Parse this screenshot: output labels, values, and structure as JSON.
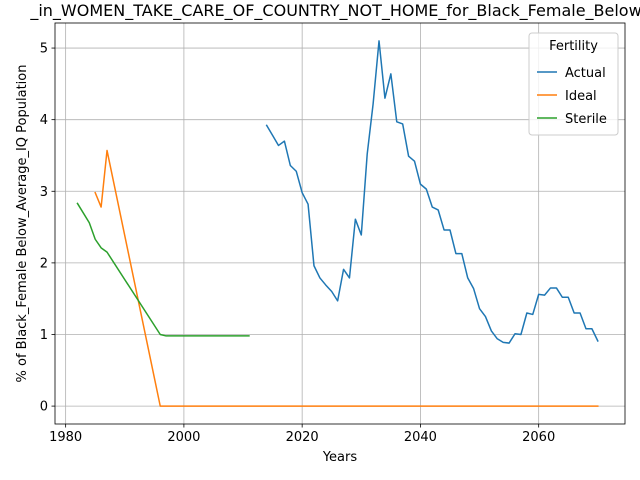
{
  "chart_data": {
    "type": "line",
    "title": "_in_WOMEN_TAKE_CARE_OF_COUNTRY_NOT_HOME_for_Black_Female_Below_",
    "xlabel": "Years",
    "ylabel": "% of Black_Female Below_Average_IQ Population",
    "xlim": [
      1978.2,
      2074.6
    ],
    "ylim": [
      -0.25,
      5.35
    ],
    "xticks": [
      1980,
      2000,
      2020,
      2040,
      2060
    ],
    "yticks": [
      0,
      1,
      2,
      3,
      4,
      5
    ],
    "grid": true,
    "legend": {
      "title": "Fertility",
      "placement": "top-right"
    },
    "series": [
      {
        "name": "Actual",
        "color": "#1f77b4",
        "x": [
          2014,
          2015,
          2016,
          2017,
          2018,
          2019,
          2020,
          2021,
          2022,
          2023,
          2024,
          2025,
          2026,
          2027,
          2028,
          2029,
          2030,
          2031,
          2032,
          2033,
          2034,
          2035,
          2036,
          2037,
          2038,
          2039,
          2040,
          2041,
          2042,
          2043,
          2044,
          2045,
          2046,
          2047,
          2048,
          2049,
          2050,
          2051,
          2052,
          2053,
          2054,
          2055,
          2056,
          2057,
          2058,
          2059,
          2060,
          2061,
          2062,
          2063,
          2064,
          2065,
          2066,
          2067,
          2068,
          2069,
          2070
        ],
        "y": [
          3.92,
          3.78,
          3.64,
          3.7,
          3.36,
          3.28,
          2.98,
          2.82,
          1.96,
          1.79,
          1.69,
          1.6,
          1.47,
          1.91,
          1.79,
          2.61,
          2.39,
          3.52,
          4.22,
          5.1,
          4.3,
          4.64,
          3.97,
          3.94,
          3.49,
          3.42,
          3.1,
          3.03,
          2.78,
          2.74,
          2.46,
          2.46,
          2.13,
          2.13,
          1.79,
          1.64,
          1.36,
          1.25,
          1.05,
          0.94,
          0.89,
          0.88,
          1.01,
          1.0,
          1.3,
          1.28,
          1.56,
          1.55,
          1.65,
          1.65,
          1.52,
          1.52,
          1.3,
          1.3,
          1.08,
          1.08,
          0.91
        ]
      },
      {
        "name": "Ideal",
        "color": "#ff7f0e",
        "x": [
          1985,
          1986,
          1987,
          1996,
          2070
        ],
        "y": [
          2.98,
          2.78,
          3.57,
          0.0,
          0.0
        ]
      },
      {
        "name": "Sterile",
        "color": "#2ca02c",
        "x": [
          1982,
          1984,
          1985,
          1986,
          1987,
          1996,
          1997,
          2011
        ],
        "y": [
          2.83,
          2.56,
          2.33,
          2.21,
          2.15,
          1.0,
          0.98,
          0.98
        ]
      }
    ]
  }
}
